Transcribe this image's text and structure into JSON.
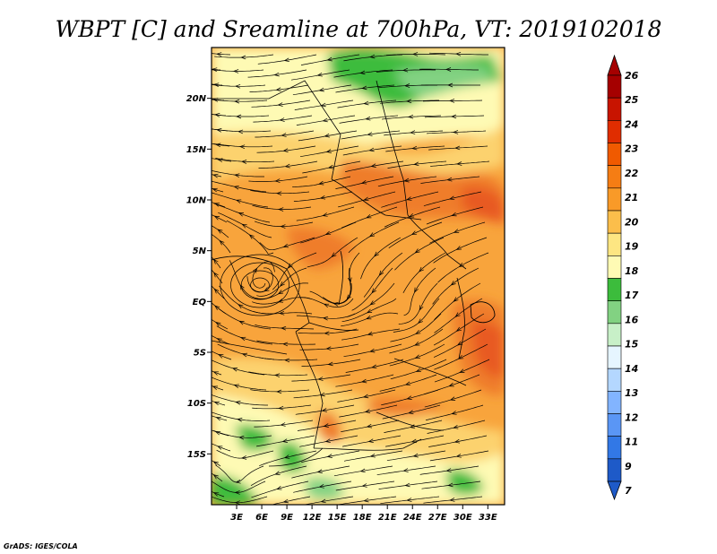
{
  "title": "WBPT [C] and Sreamline at 700hPa, VT: 2019102018",
  "credit": "GrADS: IGES/COLA",
  "map": {
    "lon_range": [
      0,
      35
    ],
    "lat_range": [
      -20,
      25
    ],
    "lon_ticks": [
      "3E",
      "6E",
      "9E",
      "12E",
      "15E",
      "18E",
      "21E",
      "24E",
      "27E",
      "30E",
      "33E"
    ],
    "lat_ticks": [
      "20N",
      "15N",
      "10N",
      "5N",
      "EQ",
      "5S",
      "10S",
      "15S"
    ],
    "fill_colors": {
      "green_dark": "#3cbc3c",
      "green_light": "#82d282",
      "pale_yellow": "#fefab4",
      "light_orange": "#fcd26e",
      "orange": "#f8a43c",
      "dark_orange": "#ef7d2a",
      "red_orange": "#e85a20"
    },
    "streamline_color": "#000000"
  },
  "colorbar": {
    "labels": [
      "26",
      "25",
      "24",
      "23",
      "22",
      "21",
      "20",
      "19",
      "18",
      "17",
      "16",
      "15",
      "14",
      "13",
      "12",
      "11",
      "9",
      "7"
    ],
    "colors": [
      "#a50000",
      "#c81400",
      "#e02d00",
      "#f05a00",
      "#f57d14",
      "#f99a28",
      "#fbbe4b",
      "#fde682",
      "#fefab4",
      "#3cbc3c",
      "#82d282",
      "#c8f0c8",
      "#e6f5ff",
      "#b4d7ff",
      "#82b4ff",
      "#5a96f5",
      "#3278e6",
      "#1e5ac8"
    ]
  }
}
